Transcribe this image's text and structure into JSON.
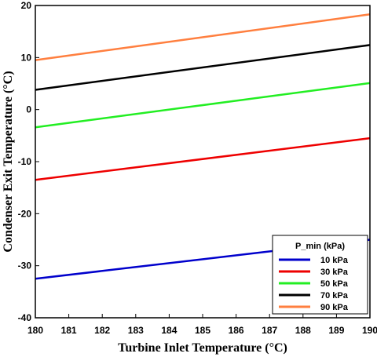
{
  "chart_data": {
    "type": "line",
    "xlabel": "Turbine Inlet Temperature (°C)",
    "ylabel": "Condenser Exit Temperature (°C)",
    "xlim": [
      180,
      190
    ],
    "ylim": [
      -40,
      20
    ],
    "xticks": [
      180,
      181,
      182,
      183,
      184,
      185,
      186,
      187,
      188,
      189,
      190
    ],
    "yticks": [
      -40,
      -30,
      -20,
      -10,
      0,
      10,
      20
    ],
    "grid": false,
    "legend_title": "P_min (kPa)",
    "legend_position": "bottom-right",
    "x": [
      180,
      190
    ],
    "series": [
      {
        "name": "10 kPa",
        "color": "#0000cc",
        "values": [
          -32.5,
          -25.0
        ]
      },
      {
        "name": "30 kPa",
        "color": "#ee0000",
        "values": [
          -13.5,
          -5.5
        ]
      },
      {
        "name": "50 kPa",
        "color": "#22ee22",
        "values": [
          -3.4,
          5.1
        ]
      },
      {
        "name": "70 kPa",
        "color": "#000000",
        "values": [
          3.8,
          12.4
        ]
      },
      {
        "name": "90 kPa",
        "color": "#ff7f3f",
        "values": [
          9.5,
          18.3
        ]
      }
    ]
  }
}
